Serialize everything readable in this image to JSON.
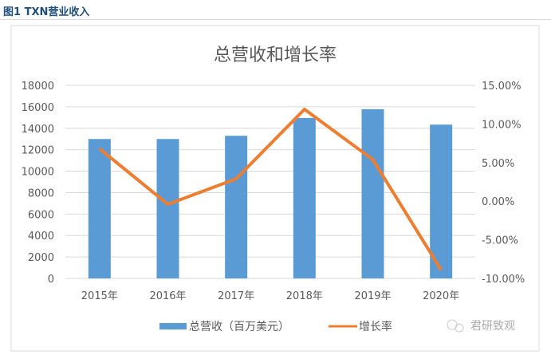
{
  "figure_label": "图1  TXN营业收入",
  "watermark": "君研致观",
  "colors": {
    "bar": "#5b9bd5",
    "line": "#ed7d31",
    "grid": "#d9d9d9",
    "text": "#595959"
  },
  "chart_data": {
    "type": "bar+line",
    "title": "总营收和增长率",
    "categories": [
      "2015年",
      "2016年",
      "2017年",
      "2018年",
      "2019年",
      "2020年"
    ],
    "series": [
      {
        "name": "总营收（百万美元）",
        "type": "bar",
        "axis": "left",
        "values": [
          13000,
          13000,
          13300,
          14960,
          15780,
          14340
        ]
      },
      {
        "name": "增长率",
        "type": "line",
        "axis": "right",
        "values": [
          6.8,
          -0.4,
          2.9,
          11.9,
          5.4,
          -8.9
        ]
      }
    ],
    "y_left": {
      "range": [
        0,
        18000
      ],
      "ticks": [
        "0",
        "2000",
        "4000",
        "6000",
        "8000",
        "10000",
        "12000",
        "14000",
        "16000",
        "18000"
      ]
    },
    "y_right": {
      "range": [
        -10,
        15
      ],
      "ticks": [
        "-10.00%",
        "-5.00%",
        "0.00%",
        "5.00%",
        "10.00%",
        "15.00%"
      ]
    },
    "grid": true,
    "legend": "bottom"
  }
}
